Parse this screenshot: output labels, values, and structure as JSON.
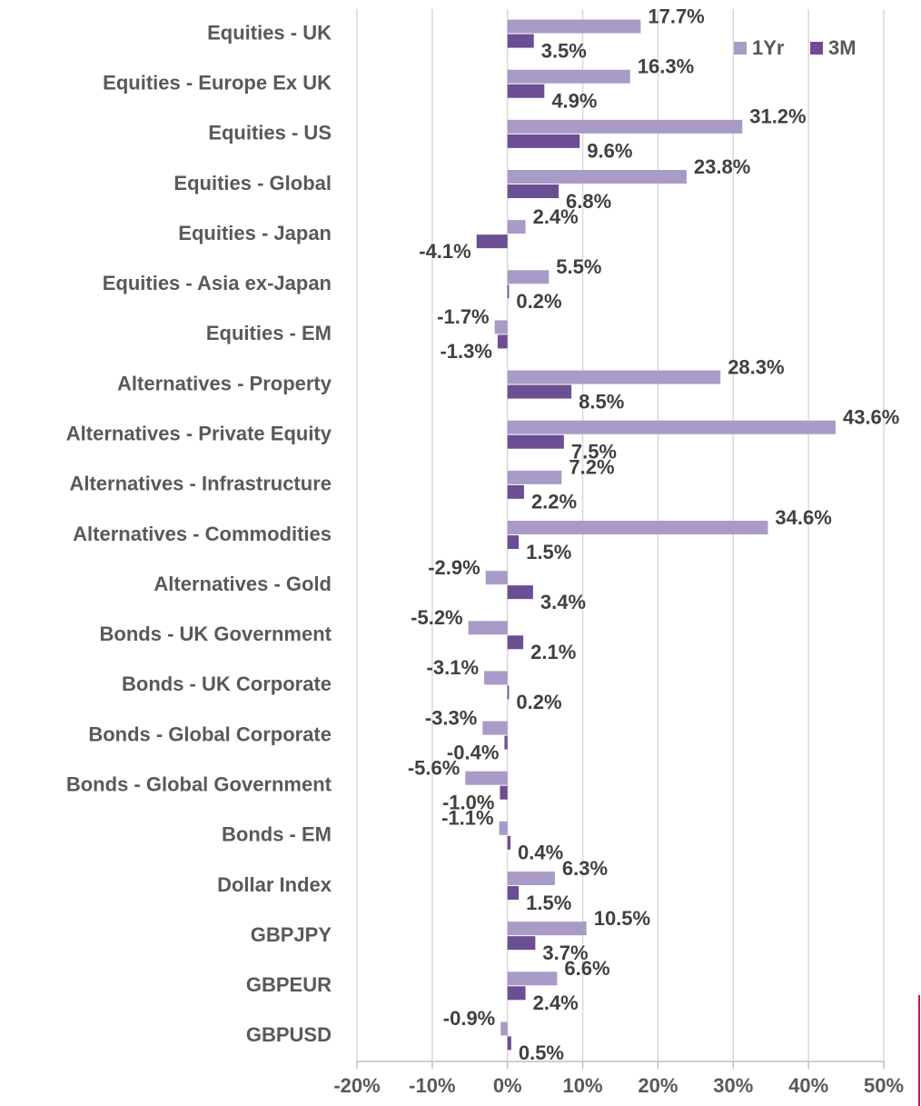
{
  "chart_data": {
    "type": "bar",
    "orientation": "horizontal",
    "categories": [
      "Equities - UK",
      "Equities - Europe Ex UK",
      "Equities - US",
      "Equities - Global",
      "Equities - Japan",
      "Equities - Asia ex-Japan",
      "Equities - EM",
      "Alternatives - Property",
      "Alternatives - Private Equity",
      "Alternatives - Infrastructure",
      "Alternatives - Commodities",
      "Alternatives - Gold",
      "Bonds - UK Government",
      "Bonds - UK Corporate",
      "Bonds - Global Corporate",
      "Bonds - Global Government",
      "Bonds - EM",
      "Dollar Index",
      "GBPJPY",
      "GBPEUR",
      "GBPUSD"
    ],
    "series": [
      {
        "name": "1Yr",
        "color": "#a99bc7",
        "values": [
          17.7,
          16.3,
          31.2,
          23.8,
          2.4,
          5.5,
          -1.7,
          28.3,
          43.6,
          7.2,
          34.6,
          -2.9,
          -5.2,
          -3.1,
          -3.3,
          -5.6,
          -1.1,
          6.3,
          10.5,
          6.6,
          -0.9
        ],
        "value_labels": [
          "17.7%",
          "16.3%",
          "31.2%",
          "23.8%",
          "2.4%",
          "5.5%",
          "-1.7%",
          "28.3%",
          "43.6%",
          "7.2%",
          "34.6%",
          "-2.9%",
          "-5.2%",
          "-3.1%",
          "-3.3%",
          "-5.6%",
          "-1.1%",
          "6.3%",
          "10.5%",
          "6.6%",
          "-0.9%"
        ]
      },
      {
        "name": "3M",
        "color": "#6b4e94",
        "values": [
          3.5,
          4.9,
          9.6,
          6.8,
          -4.1,
          0.2,
          -1.3,
          8.5,
          7.5,
          2.2,
          1.5,
          3.4,
          2.1,
          0.2,
          -0.4,
          -1.0,
          0.4,
          1.5,
          3.7,
          2.4,
          0.5
        ],
        "value_labels": [
          "3.5%",
          "4.9%",
          "9.6%",
          "6.8%",
          "-4.1%",
          "0.2%",
          "-1.3%",
          "8.5%",
          "7.5%",
          "2.2%",
          "1.5%",
          "3.4%",
          "2.1%",
          "0.2%",
          "-0.4%",
          "-1.0%",
          "0.4%",
          "1.5%",
          "3.7%",
          "2.4%",
          "0.5%"
        ]
      }
    ],
    "xlim": [
      -20,
      50
    ],
    "xticks": [
      {
        "value": -20,
        "label": "-20%"
      },
      {
        "value": -10,
        "label": "-10%"
      },
      {
        "value": 0,
        "label": "0%"
      },
      {
        "value": 10,
        "label": "10%"
      },
      {
        "value": 20,
        "label": "20%"
      },
      {
        "value": 30,
        "label": "30%"
      },
      {
        "value": 40,
        "label": "40%"
      },
      {
        "value": 50,
        "label": "50%"
      }
    ],
    "grid": true,
    "legend": "top-right"
  }
}
